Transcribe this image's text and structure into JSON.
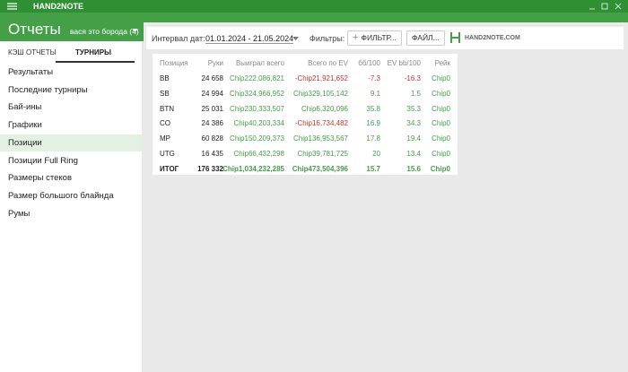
{
  "header": {
    "app_title": "HAND2NOTE",
    "page_title": "Отчеты",
    "user": "вася это борода (4)"
  },
  "tabs": [
    "КЭШ ОТЧЕТЫ",
    "ТУРНИРЫ"
  ],
  "menu": [
    "Результаты",
    "Последние турниры",
    "Бай-ины",
    "Графики",
    "Позиции",
    "Позиции Full Ring",
    "Размеры стеков",
    "Размер большого блайнда",
    "Румы"
  ],
  "toolbar": {
    "date_label": "Интервал дат:",
    "date_range": "01.01.2024 - 21.05.2024",
    "filters_label": "Фильтры:",
    "filter_button": "ФИЛЬТР...",
    "file_button": "ФАЙЛ...",
    "logo": "HAND2NOTE.COM"
  },
  "table": {
    "columns": [
      "Позиция",
      "Руки",
      "Выиграл всего",
      "Всего по EV",
      "бб/100",
      "EV bb/100",
      "Рейк"
    ],
    "rows": [
      [
        "BB",
        "24 658",
        "Chip222,086,821",
        "-Chip21,921,652",
        "-7.3",
        "-16.3",
        "Chip0"
      ],
      [
        "SB",
        "24 994",
        "Chip324,966,952",
        "Chip329,105,142",
        "9.1",
        "1.5",
        "Chip0"
      ],
      [
        "BTN",
        "25 031",
        "Chip230,333,507",
        "Chip6,320,096",
        "35.8",
        "35.3",
        "Chip0"
      ],
      [
        "CO",
        "24 386",
        "Chip40,203,334",
        "-Chip16,734,482",
        "16.9",
        "34.3",
        "Chip0"
      ],
      [
        "MP",
        "60 828",
        "Chip150,209,373",
        "Chip136,953,567",
        "17.8",
        "19.4",
        "Chip0"
      ],
      [
        "UTG",
        "16 435",
        "Chip66,432,298",
        "Chip39,781,725",
        "20",
        "13.4",
        "Chip0"
      ],
      [
        "ИТОГ",
        "176 332",
        "Chip1,034,232,285",
        "Chip473,504,396",
        "15.7",
        "15.6",
        "Chip0"
      ]
    ]
  }
}
